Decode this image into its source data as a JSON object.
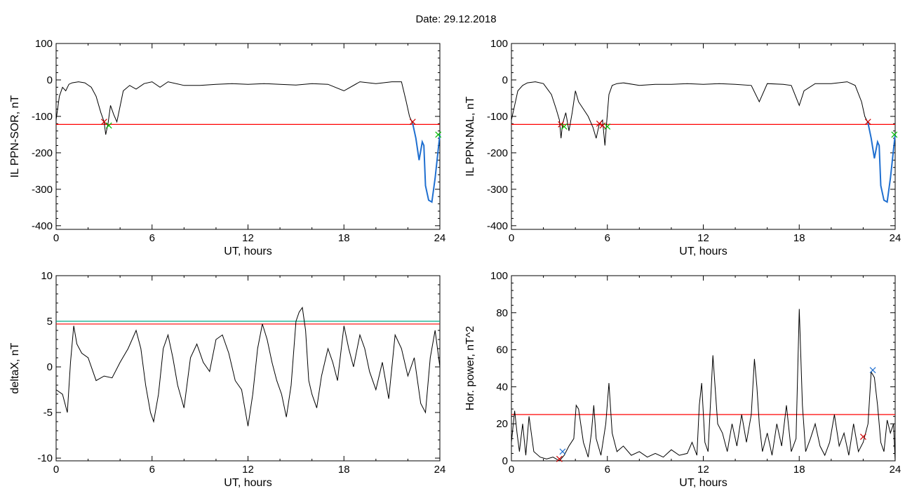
{
  "page": {
    "title": "Date:  29.12.2018"
  },
  "colors": {
    "data": "#000000",
    "threshold": "#ff0000",
    "threshold2": "#00aa88",
    "highlight": "#1f6fd0",
    "marker_red": "#cc0000",
    "marker_green": "#00bb00",
    "marker_blue": "#1f6fd0"
  },
  "chart_data": [
    {
      "id": "sor",
      "type": "line",
      "xlabel": "UT, hours",
      "ylabel": "IL PPN-SOR, nT",
      "xlim": [
        0,
        24
      ],
      "ylim": [
        -410,
        100
      ],
      "xticks": [
        "0",
        "6",
        "12",
        "18",
        "24"
      ],
      "yticks": [
        "100",
        "0",
        "-100",
        "-200",
        "-300",
        "-400"
      ],
      "threshold": -122,
      "x": [
        0,
        0.2,
        0.4,
        0.6,
        0.8,
        1.0,
        1.4,
        1.8,
        2.2,
        2.5,
        2.8,
        3.0,
        3.1,
        3.25,
        3.4,
        3.6,
        3.8,
        4.2,
        4.6,
        5.0,
        5.5,
        6.0,
        6.5,
        7.0,
        8,
        9,
        10,
        11,
        12,
        13,
        14,
        15,
        16,
        17,
        18,
        19,
        20,
        21,
        21.6,
        21.9,
        22.1,
        22.3,
        22.5,
        22.7,
        22.9,
        23.0,
        23.1,
        23.3,
        23.5,
        23.7,
        23.9,
        24.0
      ],
      "y": [
        -110,
        -45,
        -20,
        -30,
        -12,
        -8,
        -5,
        -8,
        -20,
        -45,
        -90,
        -115,
        -150,
        -118,
        -70,
        -95,
        -115,
        -30,
        -15,
        -25,
        -10,
        -5,
        -20,
        -5,
        -15,
        -15,
        -12,
        -10,
        -12,
        -10,
        -12,
        -14,
        -10,
        -12,
        -30,
        -5,
        -10,
        -5,
        -5,
        -60,
        -100,
        -120,
        -160,
        -220,
        -170,
        -180,
        -290,
        -330,
        -335,
        -270,
        -190,
        -150
      ],
      "blue_from": 22.3,
      "markers": [
        {
          "x": 3.0,
          "y": -115,
          "color": "red"
        },
        {
          "x": 3.3,
          "y": -125,
          "color": "green"
        },
        {
          "x": 22.3,
          "y": -115,
          "color": "red"
        },
        {
          "x": 23.9,
          "y": -150,
          "color": "green"
        }
      ]
    },
    {
      "id": "nal",
      "type": "line",
      "xlabel": "UT, hours",
      "ylabel": "IL PPN-NAL, nT",
      "xlim": [
        0,
        24
      ],
      "ylim": [
        -410,
        100
      ],
      "xticks": [
        "0",
        "6",
        "12",
        "18",
        "24"
      ],
      "yticks": [
        "100",
        "0",
        "-100",
        "-200",
        "-300",
        "-400"
      ],
      "threshold": -122,
      "x": [
        0,
        0.2,
        0.4,
        0.7,
        1.0,
        1.5,
        2.0,
        2.5,
        2.8,
        3.0,
        3.1,
        3.2,
        3.4,
        3.6,
        3.8,
        4.0,
        4.2,
        4.5,
        4.8,
        5.1,
        5.3,
        5.5,
        5.7,
        5.85,
        5.95,
        6.1,
        6.3,
        6.6,
        7.0,
        8,
        9,
        10,
        11,
        12,
        13,
        14,
        15,
        15.5,
        16,
        17,
        17.5,
        18.0,
        18.3,
        19,
        20,
        21,
        21.5,
        21.9,
        22.1,
        22.3,
        22.5,
        22.7,
        22.9,
        23.0,
        23.1,
        23.3,
        23.5,
        23.7,
        23.9,
        24.0
      ],
      "y": [
        -110,
        -70,
        -30,
        -15,
        -8,
        -5,
        -10,
        -40,
        -80,
        -110,
        -160,
        -120,
        -90,
        -140,
        -90,
        -30,
        -60,
        -80,
        -100,
        -130,
        -160,
        -120,
        -110,
        -180,
        -120,
        -40,
        -15,
        -10,
        -8,
        -15,
        -12,
        -12,
        -10,
        -12,
        -10,
        -12,
        -15,
        -60,
        -10,
        -12,
        -15,
        -70,
        -30,
        -10,
        -10,
        -5,
        -15,
        -60,
        -100,
        -118,
        -160,
        -215,
        -170,
        -180,
        -290,
        -330,
        -335,
        -270,
        -190,
        -150
      ],
      "blue_from": 22.3,
      "markers": [
        {
          "x": 3.1,
          "y": -122,
          "color": "red"
        },
        {
          "x": 3.3,
          "y": -128,
          "color": "green"
        },
        {
          "x": 5.5,
          "y": -120,
          "color": "red"
        },
        {
          "x": 5.7,
          "y": -125,
          "color": "red"
        },
        {
          "x": 6.0,
          "y": -128,
          "color": "green"
        },
        {
          "x": 22.3,
          "y": -115,
          "color": "red"
        },
        {
          "x": 23.95,
          "y": -150,
          "color": "green"
        }
      ]
    },
    {
      "id": "deltax",
      "type": "line",
      "xlabel": "UT, hours",
      "ylabel": "deltaX, nT",
      "xlim": [
        0,
        24
      ],
      "ylim": [
        -10.3,
        10
      ],
      "xticks": [
        "0",
        "6",
        "12",
        "18",
        "24"
      ],
      "yticks": [
        "10",
        "5",
        "0",
        "-5",
        "-10"
      ],
      "threshold": 4.7,
      "threshold2": 5.0,
      "x": [
        0,
        0.4,
        0.7,
        0.9,
        1.1,
        1.3,
        1.6,
        2.0,
        2.5,
        3.0,
        3.5,
        4.0,
        4.5,
        5.0,
        5.3,
        5.6,
        5.9,
        6.1,
        6.4,
        6.7,
        7.0,
        7.3,
        7.6,
        8.0,
        8.4,
        8.8,
        9.2,
        9.6,
        10.0,
        10.4,
        10.8,
        11.2,
        11.6,
        12.0,
        12.3,
        12.6,
        12.9,
        13.2,
        13.5,
        13.8,
        14.1,
        14.4,
        14.7,
        15.0,
        15.2,
        15.4,
        15.6,
        15.8,
        16.0,
        16.3,
        16.6,
        17.0,
        17.3,
        17.6,
        18.0,
        18.3,
        18.6,
        19.0,
        19.3,
        19.6,
        20.0,
        20.4,
        20.8,
        21.2,
        21.6,
        22.0,
        22.4,
        22.8,
        23.1,
        23.4,
        23.7,
        24.0
      ],
      "y": [
        -2.5,
        -3.0,
        -5.0,
        0.5,
        4.5,
        2.5,
        1.5,
        1.0,
        -1.5,
        -1.0,
        -1.2,
        0.5,
        2.0,
        4.0,
        2.0,
        -2.0,
        -5.0,
        -6.0,
        -3.0,
        2.0,
        3.5,
        1.0,
        -2.0,
        -4.5,
        1.0,
        2.5,
        0.5,
        -0.5,
        3.0,
        3.5,
        1.5,
        -1.5,
        -2.5,
        -6.5,
        -3.0,
        2.0,
        4.7,
        3.0,
        0.5,
        -1.5,
        -3.0,
        -5.5,
        -2.0,
        5.0,
        6.0,
        6.5,
        4.0,
        -1.5,
        -3.0,
        -4.5,
        -1.0,
        2.0,
        0.5,
        -1.5,
        4.5,
        2.0,
        0.0,
        3.5,
        2.0,
        -0.5,
        -2.5,
        0.5,
        -3.5,
        3.5,
        2.0,
        -1.0,
        1.0,
        -4.0,
        -5.0,
        1.0,
        4.0,
        0.0
      ],
      "markers": []
    },
    {
      "id": "power",
      "type": "line",
      "xlabel": "UT, hours",
      "ylabel": "Hor. power, nT^2",
      "xlim": [
        0,
        24
      ],
      "ylim": [
        0,
        100
      ],
      "xticks": [
        "0",
        "6",
        "12",
        "18",
        "24"
      ],
      "yticks": [
        "100",
        "80",
        "60",
        "40",
        "20",
        "0"
      ],
      "threshold": 25,
      "x": [
        0,
        0.2,
        0.35,
        0.5,
        0.7,
        0.9,
        1.1,
        1.4,
        1.8,
        2.2,
        2.6,
        3.0,
        3.3,
        3.6,
        3.9,
        4.05,
        4.2,
        4.5,
        4.8,
        5.0,
        5.15,
        5.3,
        5.6,
        5.9,
        6.1,
        6.3,
        6.6,
        7.0,
        7.5,
        8.0,
        8.5,
        9.0,
        9.5,
        10.0,
        10.5,
        11.0,
        11.3,
        11.6,
        11.75,
        11.9,
        12.1,
        12.3,
        12.6,
        12.9,
        13.2,
        13.5,
        13.8,
        14.1,
        14.4,
        14.7,
        15.0,
        15.2,
        15.35,
        15.5,
        15.7,
        16.0,
        16.3,
        16.6,
        16.9,
        17.2,
        17.5,
        17.8,
        18.0,
        18.2,
        18.4,
        18.7,
        19.0,
        19.3,
        19.6,
        19.9,
        20.2,
        20.5,
        20.8,
        21.1,
        21.4,
        21.7,
        22.0,
        22.3,
        22.5,
        22.7,
        22.9,
        23.1,
        23.3,
        23.5,
        23.7,
        23.9,
        24.0
      ],
      "y": [
        10,
        27,
        15,
        5,
        20,
        3,
        24,
        5,
        2,
        1,
        2,
        0,
        3,
        8,
        12,
        30,
        28,
        10,
        2,
        15,
        30,
        12,
        3,
        20,
        42,
        15,
        5,
        8,
        3,
        5,
        2,
        4,
        2,
        6,
        3,
        4,
        10,
        3,
        30,
        42,
        10,
        5,
        57,
        20,
        15,
        5,
        20,
        8,
        25,
        10,
        25,
        55,
        40,
        20,
        5,
        15,
        3,
        20,
        8,
        30,
        5,
        12,
        82,
        30,
        5,
        12,
        20,
        8,
        3,
        10,
        25,
        8,
        15,
        3,
        20,
        5,
        10,
        20,
        48,
        45,
        30,
        10,
        5,
        22,
        15,
        20,
        0
      ],
      "markers": [
        {
          "x": 3.0,
          "y": 1,
          "color": "red"
        },
        {
          "x": 3.2,
          "y": 5,
          "color": "blue"
        },
        {
          "x": 22.0,
          "y": 13,
          "color": "red"
        },
        {
          "x": 22.6,
          "y": 49,
          "color": "blue"
        }
      ]
    }
  ]
}
